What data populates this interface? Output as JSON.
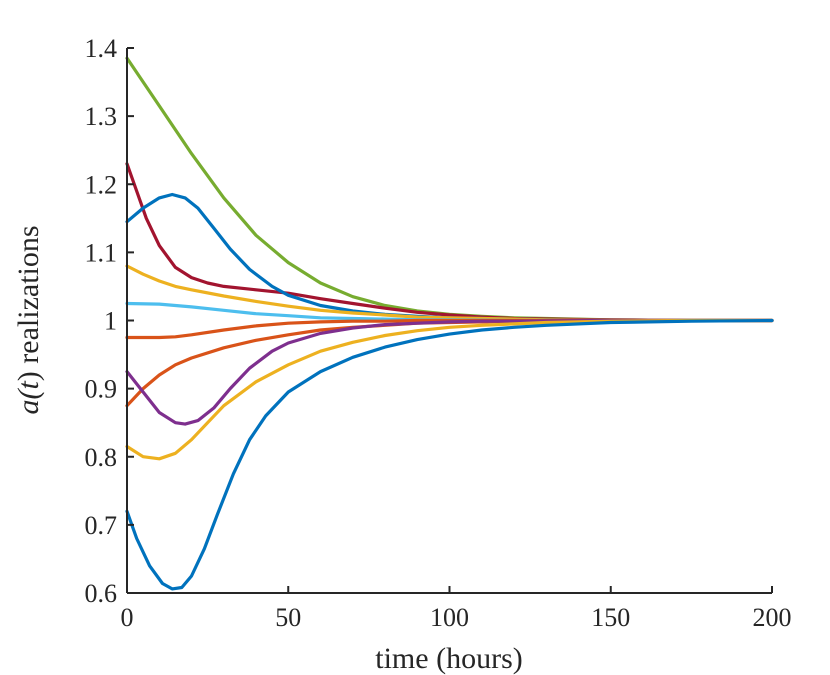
{
  "chart_data": {
    "type": "line",
    "xlabel": "time (hours)",
    "ylabel_prefix": "a(",
    "ylabel_var": "t",
    "ylabel_suffix": ") realizations",
    "xlim": [
      0,
      200
    ],
    "ylim": [
      0.6,
      1.4
    ],
    "xticks": [
      0,
      50,
      100,
      150,
      200
    ],
    "yticks": [
      0.6,
      0.7,
      0.8,
      0.9,
      1,
      1.1,
      1.2,
      1.3,
      1.4
    ],
    "xtick_labels": [
      "0",
      "50",
      "100",
      "150",
      "200"
    ],
    "ytick_labels": [
      "0.6",
      "0.7",
      "0.8",
      "0.9",
      "1",
      "1.1",
      "1.2",
      "1.3",
      "1.4"
    ],
    "grid": false,
    "series": [
      {
        "color": "#77AC30",
        "x": [
          0,
          10,
          20,
          30,
          40,
          50,
          60,
          70,
          80,
          90,
          100,
          110,
          120,
          130,
          150,
          175,
          200
        ],
        "y": [
          1.385,
          1.315,
          1.245,
          1.18,
          1.125,
          1.085,
          1.055,
          1.035,
          1.022,
          1.014,
          1.009,
          1.006,
          1.004,
          1.003,
          1.001,
          1.0,
          1.0
        ]
      },
      {
        "color": "#A2142F",
        "x": [
          0,
          3,
          6,
          10,
          15,
          20,
          25,
          30,
          40,
          50,
          60,
          70,
          80,
          90,
          100,
          110,
          120,
          130,
          150,
          175,
          200
        ],
        "y": [
          1.23,
          1.19,
          1.15,
          1.11,
          1.078,
          1.063,
          1.055,
          1.05,
          1.045,
          1.04,
          1.032,
          1.025,
          1.018,
          1.012,
          1.008,
          1.005,
          1.003,
          1.002,
          1.001,
          1.0,
          1.0
        ]
      },
      {
        "color": "#0072BD",
        "x": [
          0,
          5,
          10,
          14,
          18,
          22,
          27,
          32,
          38,
          45,
          50,
          60,
          70,
          80,
          90,
          100,
          110,
          120,
          130,
          150,
          175,
          200
        ],
        "y": [
          1.145,
          1.165,
          1.18,
          1.185,
          1.18,
          1.165,
          1.135,
          1.105,
          1.075,
          1.05,
          1.037,
          1.022,
          1.014,
          1.009,
          1.006,
          1.004,
          1.003,
          1.002,
          1.001,
          1.0,
          1.0,
          1.0
        ]
      },
      {
        "color": "#EDB120",
        "x": [
          0,
          5,
          10,
          15,
          20,
          30,
          40,
          50,
          60,
          70,
          80,
          90,
          100,
          110,
          120,
          130,
          150,
          175,
          200
        ],
        "y": [
          1.08,
          1.068,
          1.058,
          1.05,
          1.045,
          1.036,
          1.028,
          1.021,
          1.015,
          1.011,
          1.008,
          1.005,
          1.004,
          1.003,
          1.002,
          1.001,
          1.0,
          1.0,
          1.0
        ]
      },
      {
        "color": "#4DBEEE",
        "x": [
          0,
          10,
          20,
          30,
          40,
          50,
          60,
          70,
          80,
          90,
          100,
          120,
          150,
          175,
          200
        ],
        "y": [
          1.025,
          1.024,
          1.02,
          1.015,
          1.01,
          1.007,
          1.004,
          1.003,
          1.002,
          1.001,
          1.001,
          1.0,
          1.0,
          1.0,
          1.0
        ]
      },
      {
        "color": "#D95319",
        "x": [
          0,
          10,
          15,
          20,
          30,
          40,
          50,
          60,
          70,
          80,
          90,
          100,
          120,
          150,
          175,
          200
        ],
        "y": [
          0.975,
          0.975,
          0.976,
          0.979,
          0.986,
          0.992,
          0.996,
          0.998,
          0.999,
          0.999,
          1.0,
          1.0,
          1.0,
          1.0,
          1.0,
          1.0
        ]
      },
      {
        "color": "#D95319",
        "x": [
          0,
          5,
          10,
          15,
          20,
          30,
          40,
          50,
          60,
          70,
          80,
          90,
          100,
          110,
          120,
          130,
          150,
          175,
          200
        ],
        "y": [
          0.875,
          0.9,
          0.92,
          0.935,
          0.945,
          0.96,
          0.971,
          0.979,
          0.986,
          0.99,
          0.993,
          0.996,
          0.997,
          0.998,
          0.999,
          0.999,
          1.0,
          1.0,
          1.0
        ]
      },
      {
        "color": "#7E2F8E",
        "x": [
          0,
          5,
          10,
          15,
          18,
          22,
          27,
          32,
          38,
          45,
          50,
          60,
          70,
          80,
          90,
          100,
          110,
          120,
          150,
          175,
          200
        ],
        "y": [
          0.925,
          0.895,
          0.865,
          0.85,
          0.848,
          0.853,
          0.872,
          0.9,
          0.93,
          0.955,
          0.967,
          0.981,
          0.989,
          0.994,
          0.996,
          0.998,
          0.999,
          0.999,
          1.0,
          1.0,
          1.0
        ]
      },
      {
        "color": "#EDB120",
        "x": [
          0,
          5,
          10,
          15,
          20,
          25,
          30,
          40,
          50,
          60,
          70,
          80,
          90,
          100,
          110,
          120,
          130,
          150,
          175,
          200
        ],
        "y": [
          0.815,
          0.8,
          0.797,
          0.805,
          0.825,
          0.85,
          0.875,
          0.91,
          0.935,
          0.955,
          0.968,
          0.978,
          0.985,
          0.99,
          0.993,
          0.995,
          0.997,
          0.999,
          1.0,
          1.0
        ]
      },
      {
        "color": "#0072BD",
        "x": [
          0,
          3,
          7,
          11,
          14,
          17,
          20,
          24,
          28,
          33,
          38,
          43,
          50,
          60,
          70,
          80,
          90,
          100,
          110,
          120,
          130,
          150,
          175,
          200
        ],
        "y": [
          0.72,
          0.68,
          0.64,
          0.614,
          0.606,
          0.608,
          0.625,
          0.665,
          0.715,
          0.775,
          0.825,
          0.86,
          0.895,
          0.925,
          0.946,
          0.961,
          0.972,
          0.98,
          0.986,
          0.99,
          0.993,
          0.997,
          0.999,
          1.0
        ]
      }
    ]
  }
}
